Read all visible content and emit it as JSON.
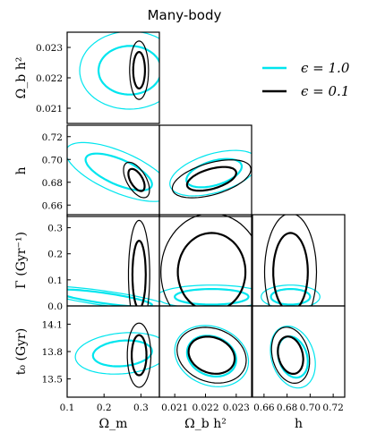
{
  "chart_data": {
    "type": "corner-contour",
    "title": "Many-body",
    "parameters": [
      {
        "name": "Omega_m",
        "label": "Ω_m",
        "range": [
          0.1,
          0.35
        ],
        "ticks": [
          "0.1",
          "0.2",
          "0.3"
        ],
        "tick_values": [
          0.1,
          0.2,
          0.3
        ]
      },
      {
        "name": "Omega_b h^2",
        "label": "Ω_b h²",
        "range": [
          0.0205,
          0.0235
        ],
        "ticks": [
          "0.021",
          "0.022",
          "0.023"
        ],
        "tick_values": [
          0.021,
          0.022,
          0.023
        ]
      },
      {
        "name": "h",
        "label": "h",
        "range": [
          0.65,
          0.73
        ],
        "ticks": [
          "0.66",
          "0.68",
          "0.70",
          "0.72"
        ],
        "tick_values": [
          0.66,
          0.68,
          0.7,
          0.72
        ]
      },
      {
        "name": "Gamma",
        "label": "Γ (Gyr⁻¹)",
        "range": [
          0.0,
          0.35
        ],
        "ticks": [
          "0.0",
          "0.1",
          "0.2",
          "0.3"
        ],
        "tick_values": [
          0.0,
          0.1,
          0.2,
          0.3
        ]
      },
      {
        "name": "t0",
        "label": "t₀ (Gyr)",
        "range": [
          13.3,
          14.3
        ],
        "ticks": [
          "13.5",
          "13.8",
          "14.1"
        ],
        "tick_values": [
          13.5,
          13.8,
          14.1
        ]
      }
    ],
    "series": [
      {
        "name": "ϵ = 1.0",
        "color": "#00e5ee"
      },
      {
        "name": "ϵ = 0.1",
        "color": "#000000"
      }
    ],
    "legend_position": "top-right",
    "panels": [
      {
        "row": 1,
        "col": 0,
        "contours": [
          {
            "series": 0,
            "cx": 0.27,
            "cy": 0.02225,
            "rx": 0.085,
            "ry": 0.0008,
            "levels": [
              1,
              1.6
            ],
            "tilt": 0.0001
          },
          {
            "series": 1,
            "cx": 0.295,
            "cy": 0.02225,
            "rx": 0.016,
            "ry": 0.0006,
            "levels": [
              1,
              1.6
            ],
            "tilt": 0
          }
        ]
      },
      {
        "row": 2,
        "col": 0,
        "contours": [
          {
            "series": 0,
            "cx": 0.24,
            "cy": 0.689,
            "rx": 0.09,
            "ry": 0.012,
            "levels": [
              1,
              1.6
            ],
            "tilt": -0.12
          },
          {
            "series": 1,
            "cx": 0.288,
            "cy": 0.682,
            "rx": 0.022,
            "ry": 0.008,
            "levels": [
              1,
              1.6
            ],
            "tilt": -0.25
          }
        ]
      },
      {
        "row": 2,
        "col": 1,
        "contours": [
          {
            "series": 0,
            "cx": 0.02228,
            "cy": 0.688,
            "rx": 0.0009,
            "ry": 0.011,
            "levels": [
              1,
              1.6
            ],
            "tilt": 6.5
          },
          {
            "series": 1,
            "cx": 0.0222,
            "cy": 0.683,
            "rx": 0.0008,
            "ry": 0.009,
            "levels": [
              1,
              1.6
            ],
            "tilt": 6.5
          }
        ]
      },
      {
        "row": 3,
        "col": 0,
        "contours": [
          {
            "series": 0,
            "cx": 0.2,
            "cy": 0.03,
            "rx": 0.13,
            "ry": 0.02,
            "levels": [
              1,
              1.4
            ],
            "tilt": -0.2
          },
          {
            "series": 1,
            "cx": 0.295,
            "cy": 0.12,
            "rx": 0.018,
            "ry": 0.13,
            "levels": [
              1,
              1.6
            ],
            "tilt": 0
          }
        ]
      },
      {
        "row": 3,
        "col": 1,
        "contours": [
          {
            "series": 0,
            "cx": 0.0222,
            "cy": 0.035,
            "rx": 0.0012,
            "ry": 0.03,
            "levels": [
              1,
              1.5
            ],
            "tilt": 0
          },
          {
            "series": 1,
            "cx": 0.0222,
            "cy": 0.13,
            "rx": 0.0011,
            "ry": 0.15,
            "levels": [
              1,
              1.5
            ],
            "tilt": 0
          }
        ]
      },
      {
        "row": 3,
        "col": 2,
        "contours": [
          {
            "series": 0,
            "cx": 0.683,
            "cy": 0.035,
            "rx": 0.017,
            "ry": 0.03,
            "levels": [
              1,
              1.5
            ],
            "tilt": 0
          },
          {
            "series": 1,
            "cx": 0.683,
            "cy": 0.13,
            "rx": 0.015,
            "ry": 0.15,
            "levels": [
              1,
              1.5
            ],
            "tilt": 0
          }
        ]
      },
      {
        "row": 4,
        "col": 0,
        "contours": [
          {
            "series": 0,
            "cx": 0.25,
            "cy": 13.78,
            "rx": 0.08,
            "ry": 0.14,
            "levels": [
              1,
              1.6
            ],
            "tilt": 0.3
          },
          {
            "series": 1,
            "cx": 0.295,
            "cy": 13.76,
            "rx": 0.02,
            "ry": 0.22,
            "levels": [
              1,
              1.6
            ],
            "tilt": 0
          }
        ]
      },
      {
        "row": 4,
        "col": 1,
        "contours": [
          {
            "series": 0,
            "cx": 0.0222,
            "cy": 13.75,
            "rx": 0.0008,
            "ry": 0.22,
            "levels": [
              1,
              1.5
            ],
            "tilt": -50
          },
          {
            "series": 1,
            "cx": 0.0222,
            "cy": 13.76,
            "rx": 0.00075,
            "ry": 0.2,
            "levels": [
              1,
              1.5
            ],
            "tilt": -50
          }
        ]
      },
      {
        "row": 4,
        "col": 2,
        "contours": [
          {
            "series": 0,
            "cx": 0.685,
            "cy": 13.74,
            "rx": 0.013,
            "ry": 0.22,
            "levels": [
              1,
              1.5
            ],
            "tilt": -4
          },
          {
            "series": 1,
            "cx": 0.683,
            "cy": 13.76,
            "rx": 0.011,
            "ry": 0.2,
            "levels": [
              1,
              1.5
            ],
            "tilt": -4
          }
        ]
      }
    ]
  }
}
